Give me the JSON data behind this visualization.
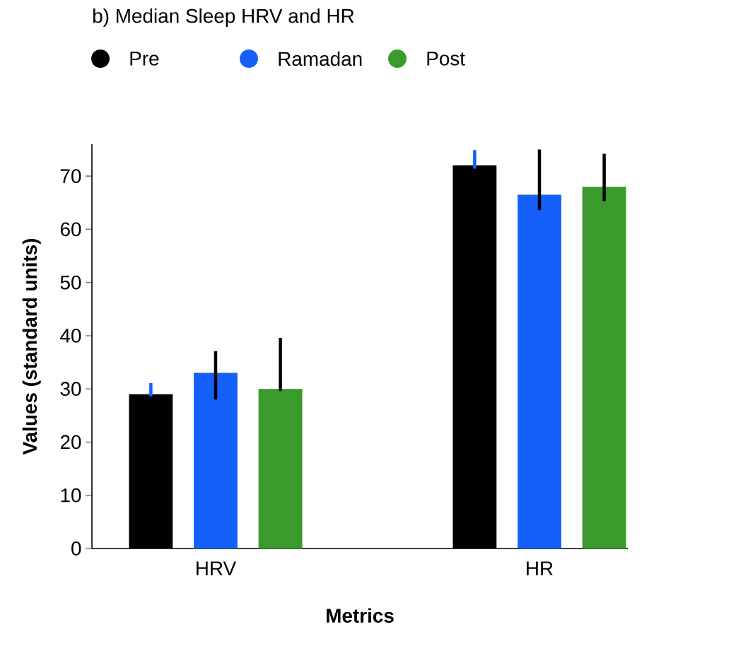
{
  "chart_data": {
    "type": "bar",
    "title": "b) Median Sleep HRV and HR",
    "xlabel": "Metrics",
    "ylabel": "Values (standard units)",
    "categories": [
      "HRV",
      "HR"
    ],
    "series": [
      {
        "name": "Pre",
        "color": "#000000",
        "values": [
          29,
          72
        ],
        "errors": [
          [
            28.6,
            31.1
          ],
          [
            71.4,
            74.9
          ]
        ]
      },
      {
        "name": "Ramadan",
        "color": "#1560f8",
        "values": [
          33,
          66.5
        ],
        "errors": [
          [
            28,
            37.1
          ],
          [
            63.6,
            75
          ]
        ]
      },
      {
        "name": "Post",
        "color": "#3a9a2c",
        "values": [
          30,
          68
        ],
        "errors": [
          [
            29.6,
            39.6
          ],
          [
            65.3,
            74.2
          ]
        ]
      }
    ],
    "ylim": [
      0,
      76
    ],
    "yticks": [
      0,
      10,
      20,
      30,
      40,
      50,
      60,
      70
    ],
    "legend": "top left"
  }
}
